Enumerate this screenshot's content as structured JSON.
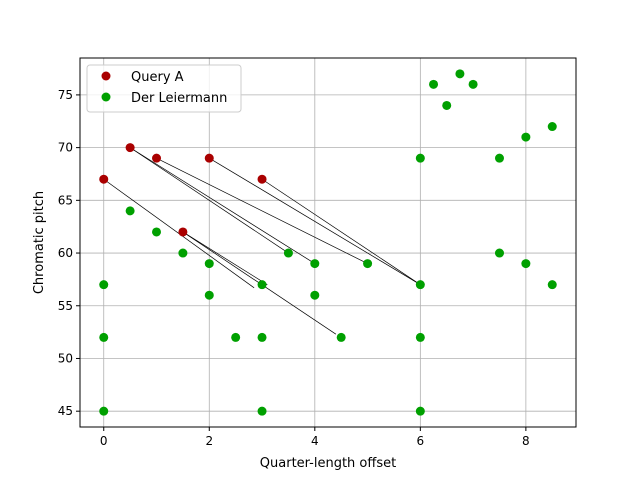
{
  "chart_data": {
    "type": "scatter",
    "title": "",
    "xlabel": "Quarter-length offset",
    "ylabel": "Chromatic pitch",
    "xlim": [
      -0.45,
      8.95
    ],
    "ylim": [
      43.5,
      78.5
    ],
    "xticks": [
      0,
      2,
      4,
      6,
      8
    ],
    "yticks": [
      45,
      50,
      55,
      60,
      65,
      70,
      75
    ],
    "grid": true,
    "legend_position": "top-left",
    "series": [
      {
        "name": "Query A",
        "color": "#aa0000",
        "points": [
          [
            0,
            67
          ],
          [
            0.5,
            70
          ],
          [
            1,
            69
          ],
          [
            1.5,
            62
          ],
          [
            2,
            69
          ],
          [
            3,
            67
          ]
        ]
      },
      {
        "name": "Der Leiermann",
        "color": "#00a000",
        "points": [
          [
            0,
            57
          ],
          [
            0,
            52
          ],
          [
            0,
            45
          ],
          [
            0.5,
            64
          ],
          [
            1,
            62
          ],
          [
            1.5,
            60
          ],
          [
            2,
            59
          ],
          [
            2,
            56
          ],
          [
            2.5,
            52
          ],
          [
            3,
            57
          ],
          [
            3,
            52
          ],
          [
            3,
            45
          ],
          [
            3.5,
            60
          ],
          [
            4,
            59
          ],
          [
            4,
            56
          ],
          [
            4.5,
            52
          ],
          [
            5,
            59
          ],
          [
            6,
            69
          ],
          [
            6,
            57
          ],
          [
            6,
            52
          ],
          [
            6,
            45
          ],
          [
            6.25,
            76
          ],
          [
            6.5,
            74
          ],
          [
            6.75,
            77
          ],
          [
            7,
            76
          ],
          [
            7.5,
            69
          ],
          [
            7.5,
            60
          ],
          [
            8,
            71
          ],
          [
            8,
            59
          ],
          [
            8.5,
            72
          ],
          [
            8.5,
            57
          ]
        ]
      }
    ],
    "connections": [
      [
        [
          0,
          67
        ],
        [
          2.85,
          56.7
        ]
      ],
      [
        [
          0.5,
          70
        ],
        [
          3.5,
          60
        ]
      ],
      [
        [
          0.5,
          70
        ],
        [
          4,
          59
        ]
      ],
      [
        [
          1,
          69
        ],
        [
          5,
          59
        ]
      ],
      [
        [
          1.5,
          62
        ],
        [
          4.4,
          52.3
        ]
      ],
      [
        [
          1.5,
          62
        ],
        [
          3.1,
          57
        ]
      ],
      [
        [
          2,
          69
        ],
        [
          6,
          57
        ]
      ],
      [
        [
          3,
          67
        ],
        [
          6,
          57
        ]
      ]
    ]
  }
}
